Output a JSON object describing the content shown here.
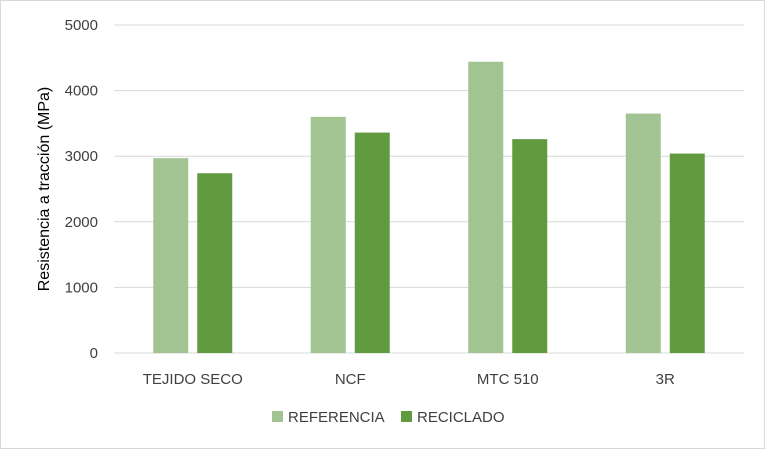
{
  "chart_data": {
    "type": "bar",
    "categories": [
      "TEJIDO SECO",
      "NCF",
      "MTC 510",
      "3R"
    ],
    "series": [
      {
        "name": "REFERENCIA",
        "values": [
          2970,
          3600,
          4440,
          3650
        ],
        "color": "#a2c392"
      },
      {
        "name": "RECICLADO",
        "values": [
          2740,
          3360,
          3260,
          3040
        ],
        "color": "#629a3f"
      }
    ],
    "title": "",
    "xlabel": "",
    "ylabel": "Resistencia a tracción (MPa)",
    "ylim": [
      0,
      5000
    ],
    "yticks": [
      0,
      1000,
      2000,
      3000,
      4000,
      5000
    ],
    "grid": true,
    "legend_position": "bottom"
  }
}
